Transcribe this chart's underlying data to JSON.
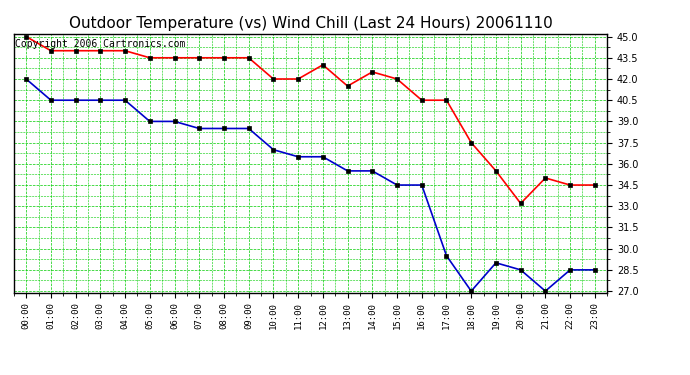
{
  "title": "Outdoor Temperature (vs) Wind Chill (Last 24 Hours) 20061110",
  "copyright": "Copyright 2006 Cartronics.com",
  "x_labels": [
    "00:00",
    "01:00",
    "02:00",
    "03:00",
    "04:00",
    "05:00",
    "06:00",
    "07:00",
    "08:00",
    "09:00",
    "10:00",
    "11:00",
    "12:00",
    "13:00",
    "14:00",
    "15:00",
    "16:00",
    "17:00",
    "18:00",
    "19:00",
    "20:00",
    "21:00",
    "22:00",
    "23:00"
  ],
  "temp_red": [
    45.0,
    44.0,
    44.0,
    44.0,
    44.0,
    43.5,
    43.5,
    43.5,
    43.5,
    43.5,
    42.0,
    42.0,
    43.0,
    41.5,
    42.5,
    42.0,
    40.5,
    40.5,
    37.5,
    35.5,
    33.2,
    35.0,
    34.5,
    34.5
  ],
  "wind_chill_blue": [
    42.0,
    40.5,
    40.5,
    40.5,
    40.5,
    39.0,
    39.0,
    38.5,
    38.5,
    38.5,
    37.0,
    36.5,
    36.5,
    35.5,
    35.5,
    34.5,
    34.5,
    29.5,
    27.0,
    29.0,
    28.5,
    27.0,
    28.5,
    28.5
  ],
  "ylim_min": 27.0,
  "ylim_max": 45.0,
  "ytick_step": 1.5,
  "line_color_red": "#ff0000",
  "line_color_blue": "#0000cc",
  "grid_color": "#00cc00",
  "bg_color": "#ffffff",
  "title_fontsize": 11,
  "copyright_fontsize": 7
}
